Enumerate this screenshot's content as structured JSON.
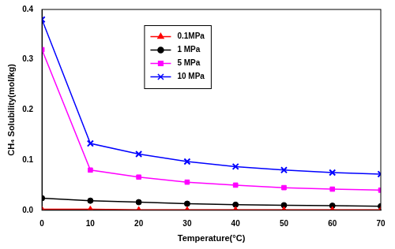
{
  "chart_data": {
    "type": "line",
    "x_label": "Temperature(°C)",
    "y_label": "CH₄ Solubility(mol/kg)",
    "x": [
      0,
      10,
      20,
      30,
      40,
      50,
      60,
      70
    ],
    "series": [
      {
        "name": "0.1MPa",
        "color": "#ff0000",
        "marker": "triangle",
        "values": [
          0.002,
          0.002,
          0.001,
          0.001,
          0.001,
          0.001,
          0.001,
          0.001
        ]
      },
      {
        "name": "1 MPa",
        "color": "#000000",
        "marker": "circle",
        "values": [
          0.024,
          0.019,
          0.016,
          0.013,
          0.011,
          0.01,
          0.009,
          0.008
        ]
      },
      {
        "name": "5 MPa",
        "color": "#ff00ff",
        "marker": "square",
        "values": [
          0.32,
          0.08,
          0.066,
          0.056,
          0.05,
          0.045,
          0.042,
          0.04
        ]
      },
      {
        "name": "10 MPa",
        "color": "#0000ff",
        "marker": "x",
        "values": [
          0.38,
          0.133,
          0.112,
          0.097,
          0.087,
          0.08,
          0.075,
          0.072
        ]
      }
    ],
    "xlim": [
      0,
      70
    ],
    "xticks": [
      0,
      10,
      20,
      30,
      40,
      50,
      60,
      70
    ],
    "ylim": [
      0,
      0.4
    ],
    "yticks": [
      {
        "value": 0,
        "label": "0.0"
      },
      0.1,
      0.2,
      0.3,
      0.4
    ],
    "grid": false,
    "legend": "top"
  }
}
